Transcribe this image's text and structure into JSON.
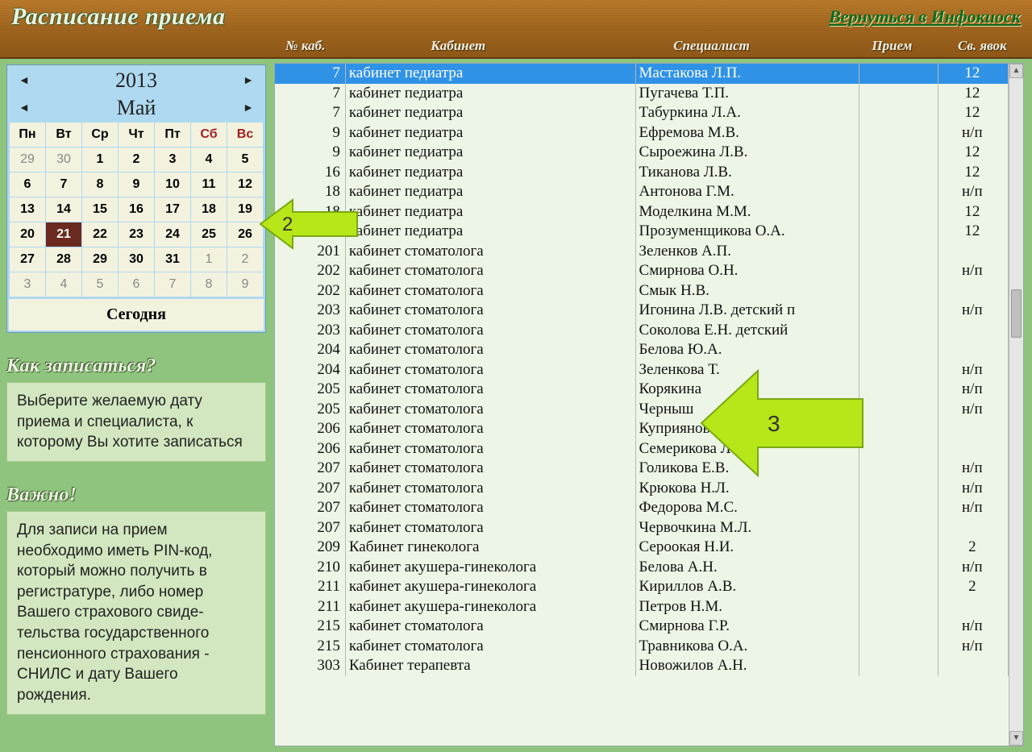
{
  "title": "Расписание приема",
  "back_link": "Вернуться в Инфокиоск",
  "columns": {
    "num": "№ каб.",
    "cab": "Кабинет",
    "spec": "Специалист",
    "priem": "Прием",
    "yav": "Св. явок"
  },
  "calendar": {
    "year": "2013",
    "month": "Май",
    "today_label": "Сегодня",
    "dow": [
      "Пн",
      "Вт",
      "Ср",
      "Чт",
      "Пт",
      "Сб",
      "Вс"
    ],
    "weeks": [
      [
        {
          "d": "29",
          "dim": true
        },
        {
          "d": "30",
          "dim": true
        },
        {
          "d": "1"
        },
        {
          "d": "2"
        },
        {
          "d": "3"
        },
        {
          "d": "4"
        },
        {
          "d": "5"
        }
      ],
      [
        {
          "d": "6"
        },
        {
          "d": "7"
        },
        {
          "d": "8"
        },
        {
          "d": "9"
        },
        {
          "d": "10"
        },
        {
          "d": "11"
        },
        {
          "d": "12"
        }
      ],
      [
        {
          "d": "13"
        },
        {
          "d": "14"
        },
        {
          "d": "15"
        },
        {
          "d": "16"
        },
        {
          "d": "17"
        },
        {
          "d": "18"
        },
        {
          "d": "19"
        }
      ],
      [
        {
          "d": "20"
        },
        {
          "d": "21",
          "sel": true
        },
        {
          "d": "22"
        },
        {
          "d": "23"
        },
        {
          "d": "24"
        },
        {
          "d": "25"
        },
        {
          "d": "26"
        }
      ],
      [
        {
          "d": "27"
        },
        {
          "d": "28"
        },
        {
          "d": "29"
        },
        {
          "d": "30"
        },
        {
          "d": "31"
        },
        {
          "d": "1",
          "dim": true
        },
        {
          "d": "2",
          "dim": true
        }
      ],
      [
        {
          "d": "3",
          "dim": true
        },
        {
          "d": "4",
          "dim": true
        },
        {
          "d": "5",
          "dim": true
        },
        {
          "d": "6",
          "dim": true
        },
        {
          "d": "7",
          "dim": true
        },
        {
          "d": "8",
          "dim": true
        },
        {
          "d": "9",
          "dim": true
        }
      ]
    ]
  },
  "howto": {
    "head": "Как записаться?",
    "body": "Выберите желаемую дату приема и специалиста, к которому Вы хотите записаться"
  },
  "important": {
    "head": "Важно!",
    "body": "Для записи на прием необходимо иметь PIN-код, который можно получить в регистратуре, либо номер Вашего страхового свиде-тельства государственного пенсионного страхования - СНИЛС и дату Вашего рождения."
  },
  "rows": [
    {
      "num": "7",
      "cab": "кабинет педиатра",
      "spec": "Мастакова Л.П.",
      "pri": "",
      "yav": "12",
      "sel": true
    },
    {
      "num": "7",
      "cab": "кабинет педиатра",
      "spec": "Пугачева Т.П.",
      "pri": "",
      "yav": "12"
    },
    {
      "num": "7",
      "cab": "кабинет педиатра",
      "spec": "Табуркина Л.А.",
      "pri": "",
      "yav": "12"
    },
    {
      "num": "9",
      "cab": "кабинет педиатра",
      "spec": "Ефремова М.В.",
      "pri": "",
      "yav": "н/п"
    },
    {
      "num": "9",
      "cab": "кабинет педиатра",
      "spec": "Сыроежина Л.В.",
      "pri": "",
      "yav": "12"
    },
    {
      "num": "16",
      "cab": "кабинет педиатра",
      "spec": "Тиканова Л.В.",
      "pri": "",
      "yav": "12"
    },
    {
      "num": "18",
      "cab": "кабинет педиатра",
      "spec": "Антонова Г.М.",
      "pri": "",
      "yav": "н/п"
    },
    {
      "num": "18",
      "cab": "кабинет педиатра",
      "spec": "Моделкина М.М.",
      "pri": "",
      "yav": "12"
    },
    {
      "num": "18",
      "cab": "кабинет педиатра",
      "spec": "Прозуменщикова О.А.",
      "pri": "",
      "yav": "12"
    },
    {
      "num": "201",
      "cab": "кабинет  стоматолога",
      "spec": "Зеленков А.П.",
      "pri": "",
      "yav": ""
    },
    {
      "num": "202",
      "cab": "кабинет стоматолога",
      "spec": "Смирнова О.Н.",
      "pri": "",
      "yav": "н/п"
    },
    {
      "num": "202",
      "cab": "кабинет стоматолога",
      "spec": "Смык Н.В.",
      "pri": "",
      "yav": ""
    },
    {
      "num": "203",
      "cab": "кабинет стоматолога",
      "spec": "Игонина Л.В. детский п",
      "pri": "",
      "yav": "н/п"
    },
    {
      "num": "203",
      "cab": "кабинет стоматолога",
      "spec": "Соколова Е.Н. детский",
      "pri": "",
      "yav": ""
    },
    {
      "num": "204",
      "cab": "кабинет стоматолога",
      "spec": "Белова Ю.А.",
      "pri": "",
      "yav": ""
    },
    {
      "num": "204",
      "cab": "кабинет стоматолога",
      "spec": "Зеленкова Т.",
      "pri": "",
      "yav": "н/п"
    },
    {
      "num": "205",
      "cab": "кабинет стоматолога",
      "spec": "Корякина",
      "pri": "",
      "yav": "н/п"
    },
    {
      "num": "205",
      "cab": "кабинет стоматолога",
      "spec": "Черныш",
      "pri": "",
      "yav": "н/п"
    },
    {
      "num": "206",
      "cab": "кабинет стоматолога",
      "spec": "Куприянова",
      "pri": "",
      "yav": ""
    },
    {
      "num": "206",
      "cab": "кабинет стоматолога",
      "spec": "Семерикова Л.А.",
      "pri": "",
      "yav": ""
    },
    {
      "num": "207",
      "cab": "кабинет стоматолога",
      "spec": "Голикова Е.В.",
      "pri": "",
      "yav": "н/п"
    },
    {
      "num": "207",
      "cab": "кабинет стоматолога",
      "spec": "Крюкова Н.Л.",
      "pri": "",
      "yav": "н/п"
    },
    {
      "num": "207",
      "cab": "кабинет стоматолога",
      "spec": "Федорова М.С.",
      "pri": "",
      "yav": "н/п"
    },
    {
      "num": "207",
      "cab": "кабинет стоматолога",
      "spec": "Червочкина М.Л.",
      "pri": "",
      "yav": ""
    },
    {
      "num": "209",
      "cab": "Кабинет гинеколога",
      "spec": "Сероокая Н.И.",
      "pri": "",
      "yav": "2"
    },
    {
      "num": "210",
      "cab": "кабинет акушера-гинеколога",
      "spec": "Белова А.Н.",
      "pri": "",
      "yav": "н/п"
    },
    {
      "num": "211",
      "cab": "кабинет акушера-гинеколога",
      "spec": "Кириллов А.В.",
      "pri": "",
      "yav": "2"
    },
    {
      "num": "211",
      "cab": "кабинет акушера-гинеколога",
      "spec": "Петров Н.М.",
      "pri": "",
      "yav": ""
    },
    {
      "num": "215",
      "cab": "кабинет стоматолога",
      "spec": "Смирнова Г.Р.",
      "pri": "",
      "yav": "н/п"
    },
    {
      "num": "215",
      "cab": "кабинет стоматолога",
      "spec": "Травникова О.А.",
      "pri": "",
      "yav": "н/п"
    },
    {
      "num": "303",
      "cab": "Кабинет терапевта",
      "spec": "Новожилов А.Н.",
      "pri": "",
      "yav": ""
    }
  ],
  "arrows": {
    "a2": {
      "label": "2",
      "fill": "#b7e619",
      "stroke": "#7aa812"
    },
    "a3": {
      "label": "3",
      "fill": "#b7e619",
      "stroke": "#7aa812"
    }
  }
}
